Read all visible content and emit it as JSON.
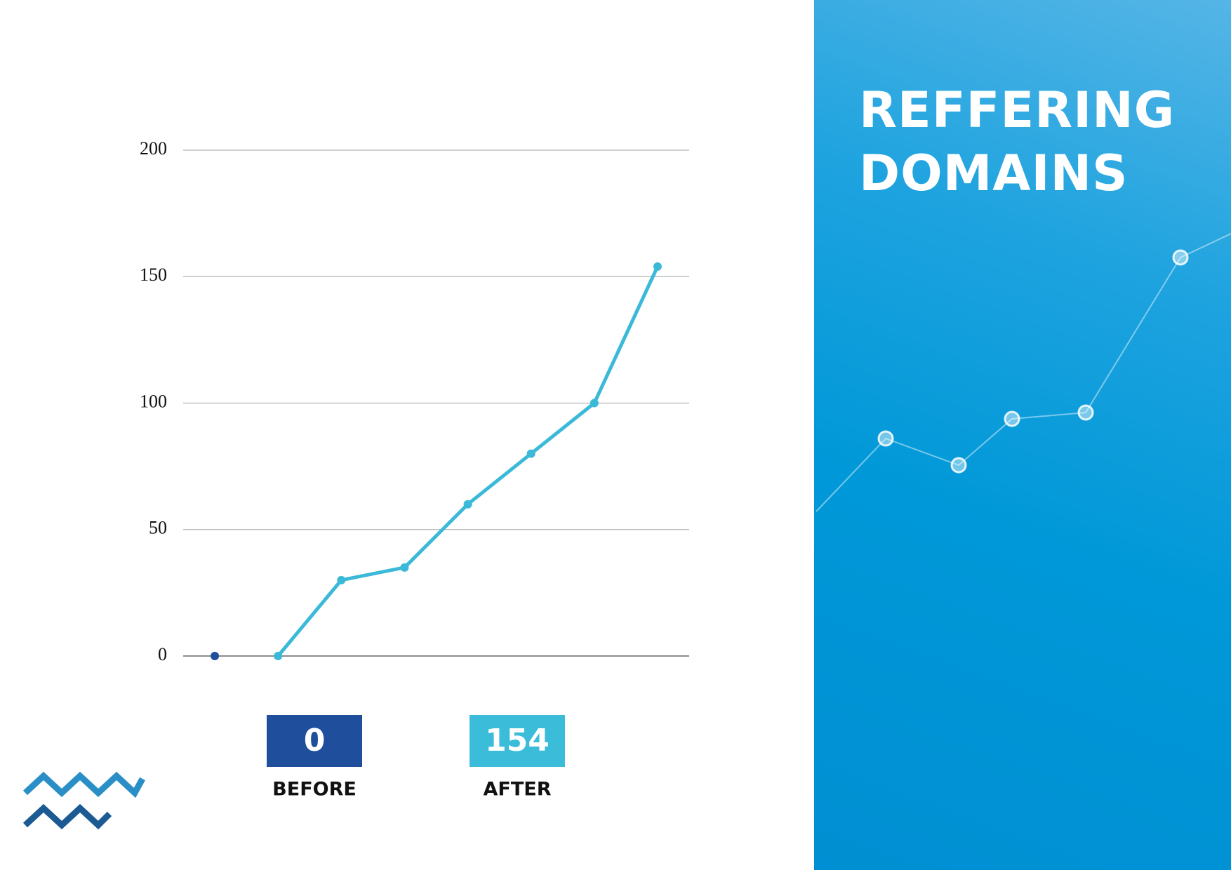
{
  "chart_data": {
    "type": "line",
    "title": "REFFERING DOMAINS",
    "categories": [
      null,
      null,
      null,
      null,
      null,
      null,
      null,
      null
    ],
    "series": [
      {
        "color": "#1f4e9c",
        "values": [
          0,
          null,
          null,
          null,
          null,
          null,
          null,
          null
        ]
      },
      {
        "color": "#3bb9d8",
        "values": [
          null,
          0,
          30,
          35,
          60,
          80,
          100,
          154
        ]
      }
    ],
    "ylim": [
      0,
      200
    ],
    "yticks": [
      0,
      50,
      100,
      150,
      200
    ],
    "grid": true,
    "summary": [
      {
        "label": "BEFORE",
        "value": 0,
        "color": "#1f4e9c"
      },
      {
        "label": "AFTER",
        "value": 154,
        "color": "#3bbcd9"
      }
    ]
  }
}
